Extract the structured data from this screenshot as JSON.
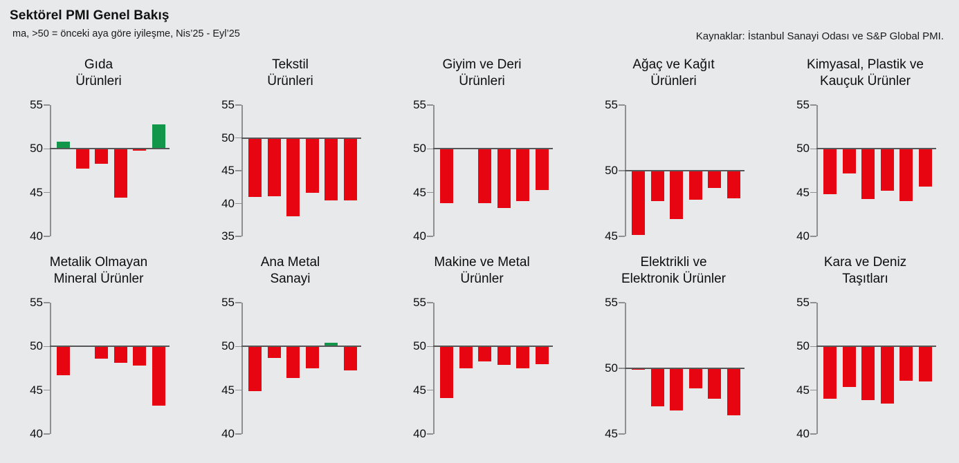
{
  "header": {
    "title": "Sektörel PMI Genel Bakış",
    "subtitle": "ma, >50 = önceki aya göre iyileşme, Nis’25 - Eyl’25",
    "source": "Kaynaklar: İstanbul Sanayi Odası ve S&P Global PMI."
  },
  "colors": {
    "above_50": "#12964a",
    "below_50": "#e60511",
    "axis": "#8f8f8f",
    "baseline": "#565656",
    "background": "#e8e9ea"
  },
  "chart_data": {
    "type": "bar",
    "title": "Sektörel PMI Genel Bakış",
    "note": "ma, >50 = önceki aya göre iyileşme",
    "period": "Nis’25 - Eyl’25",
    "baseline": 50,
    "bars_per_chart": 6,
    "legend_position": "none",
    "grid": false,
    "charts": [
      {
        "title": [
          "Gıda",
          "Ürünleri"
        ],
        "ylim": [
          40,
          55
        ],
        "ticks": [
          55,
          50,
          45,
          40
        ],
        "values": [
          50.8,
          47.7,
          48.3,
          44.4,
          49.8,
          52.8
        ]
      },
      {
        "title": [
          "Tekstil",
          "Ürünleri"
        ],
        "ylim": [
          35,
          55
        ],
        "ticks": [
          55,
          50,
          45,
          40,
          35
        ],
        "values": [
          41.0,
          41.1,
          38.1,
          41.6,
          40.5,
          40.5
        ]
      },
      {
        "title": [
          "Giyim ve Deri",
          "Ürünleri"
        ],
        "ylim": [
          40,
          55
        ],
        "ticks": [
          55,
          50,
          45,
          40
        ],
        "values": [
          43.8,
          50.1,
          43.8,
          43.2,
          44.0,
          45.3
        ]
      },
      {
        "title": [
          "Ağaç ve Kağıt",
          "Ürünleri"
        ],
        "ylim": [
          45,
          55
        ],
        "ticks": [
          55,
          50,
          45
        ],
        "values": [
          45.1,
          47.7,
          46.3,
          47.8,
          48.7,
          47.9
        ]
      },
      {
        "title": [
          "Kimyasal, Plastik ve",
          "Kauçuk Ürünler"
        ],
        "ylim": [
          40,
          55
        ],
        "ticks": [
          55,
          50,
          45,
          40
        ],
        "values": [
          44.8,
          47.2,
          44.3,
          45.2,
          44.0,
          45.7
        ]
      },
      {
        "title": [
          "Metalik Olmayan",
          "Mineral Ürünler"
        ],
        "ylim": [
          40,
          55
        ],
        "ticks": [
          55,
          50,
          45,
          40
        ],
        "values": [
          46.7,
          50.0,
          48.6,
          48.1,
          47.8,
          43.2
        ]
      },
      {
        "title": [
          "Ana Metal",
          "Sanayi"
        ],
        "ylim": [
          40,
          55
        ],
        "ticks": [
          55,
          50,
          45,
          40
        ],
        "values": [
          44.9,
          48.7,
          46.4,
          47.5,
          50.4,
          47.3
        ]
      },
      {
        "title": [
          "Makine ve Metal",
          "Ürünler"
        ],
        "ylim": [
          40,
          55
        ],
        "ticks": [
          55,
          50,
          45,
          40
        ],
        "values": [
          44.1,
          47.5,
          48.3,
          47.9,
          47.5,
          48.0
        ]
      },
      {
        "title": [
          "Elektrikli ve",
          "Elektronik Ürünler"
        ],
        "ylim": [
          45,
          55
        ],
        "ticks": [
          55,
          50,
          45
        ],
        "values": [
          49.9,
          47.1,
          46.8,
          48.5,
          47.7,
          46.4
        ]
      },
      {
        "title": [
          "Kara ve Deniz",
          "Taşıtları"
        ],
        "ylim": [
          40,
          55
        ],
        "ticks": [
          55,
          50,
          45,
          40
        ],
        "values": [
          44.0,
          45.4,
          43.9,
          43.5,
          46.1,
          46.0
        ]
      }
    ]
  }
}
